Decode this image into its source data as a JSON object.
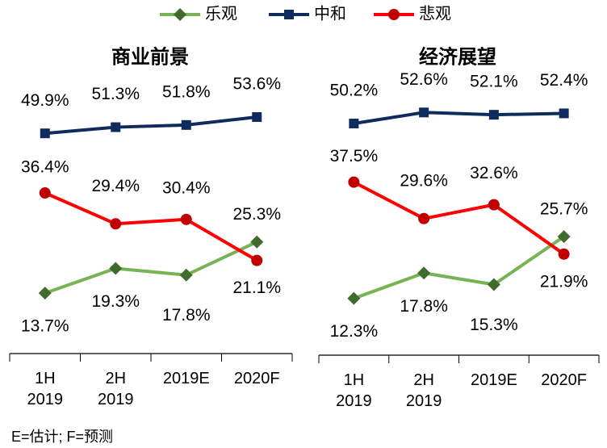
{
  "legend": [
    {
      "name": "乐观",
      "color": "#77b254",
      "marker": "diamond",
      "marker_color": "#3f6b2c"
    },
    {
      "name": "中和",
      "color": "#0f2b5e",
      "marker": "square",
      "marker_color": "#0f2b5e"
    },
    {
      "name": "悲观",
      "color": "#ff0000",
      "marker": "circle",
      "marker_color": "#c00000"
    }
  ],
  "chart_data": [
    {
      "type": "line",
      "title": "商业前景",
      "categories": [
        "1H 2019",
        "2H 2019",
        "2019E",
        "2020F"
      ],
      "ylim": [
        0,
        60
      ],
      "series": [
        {
          "values": [
            13.7,
            19.3,
            17.8,
            25.3
          ],
          "value_labels": [
            "13.7%",
            "19.3%",
            "17.8%",
            "25.3%"
          ]
        },
        {
          "values": [
            49.9,
            51.3,
            51.8,
            53.6
          ],
          "value_labels": [
            "49.9%",
            "51.3%",
            "51.8%",
            "53.6%"
          ]
        },
        {
          "values": [
            36.4,
            29.4,
            30.4,
            21.1
          ],
          "value_labels": [
            "36.4%",
            "29.4%",
            "30.4%",
            "21.1%"
          ]
        }
      ]
    },
    {
      "type": "line",
      "title": "经济展望",
      "categories": [
        "1H 2019",
        "2H 2019",
        "2019E",
        "2020F"
      ],
      "ylim": [
        0,
        60
      ],
      "series": [
        {
          "values": [
            12.3,
            17.8,
            15.3,
            25.7
          ],
          "value_labels": [
            "12.3%",
            "17.8%",
            "15.3%",
            "25.7%"
          ]
        },
        {
          "values": [
            50.2,
            52.6,
            52.1,
            52.4
          ],
          "value_labels": [
            "50.2%",
            "52.6%",
            "52.1%",
            "52.4%"
          ]
        },
        {
          "values": [
            37.5,
            29.6,
            32.6,
            21.9
          ],
          "value_labels": [
            "37.5%",
            "29.6%",
            "32.6%",
            "21.9%"
          ]
        }
      ]
    }
  ],
  "note": "E=估计; F=预测"
}
